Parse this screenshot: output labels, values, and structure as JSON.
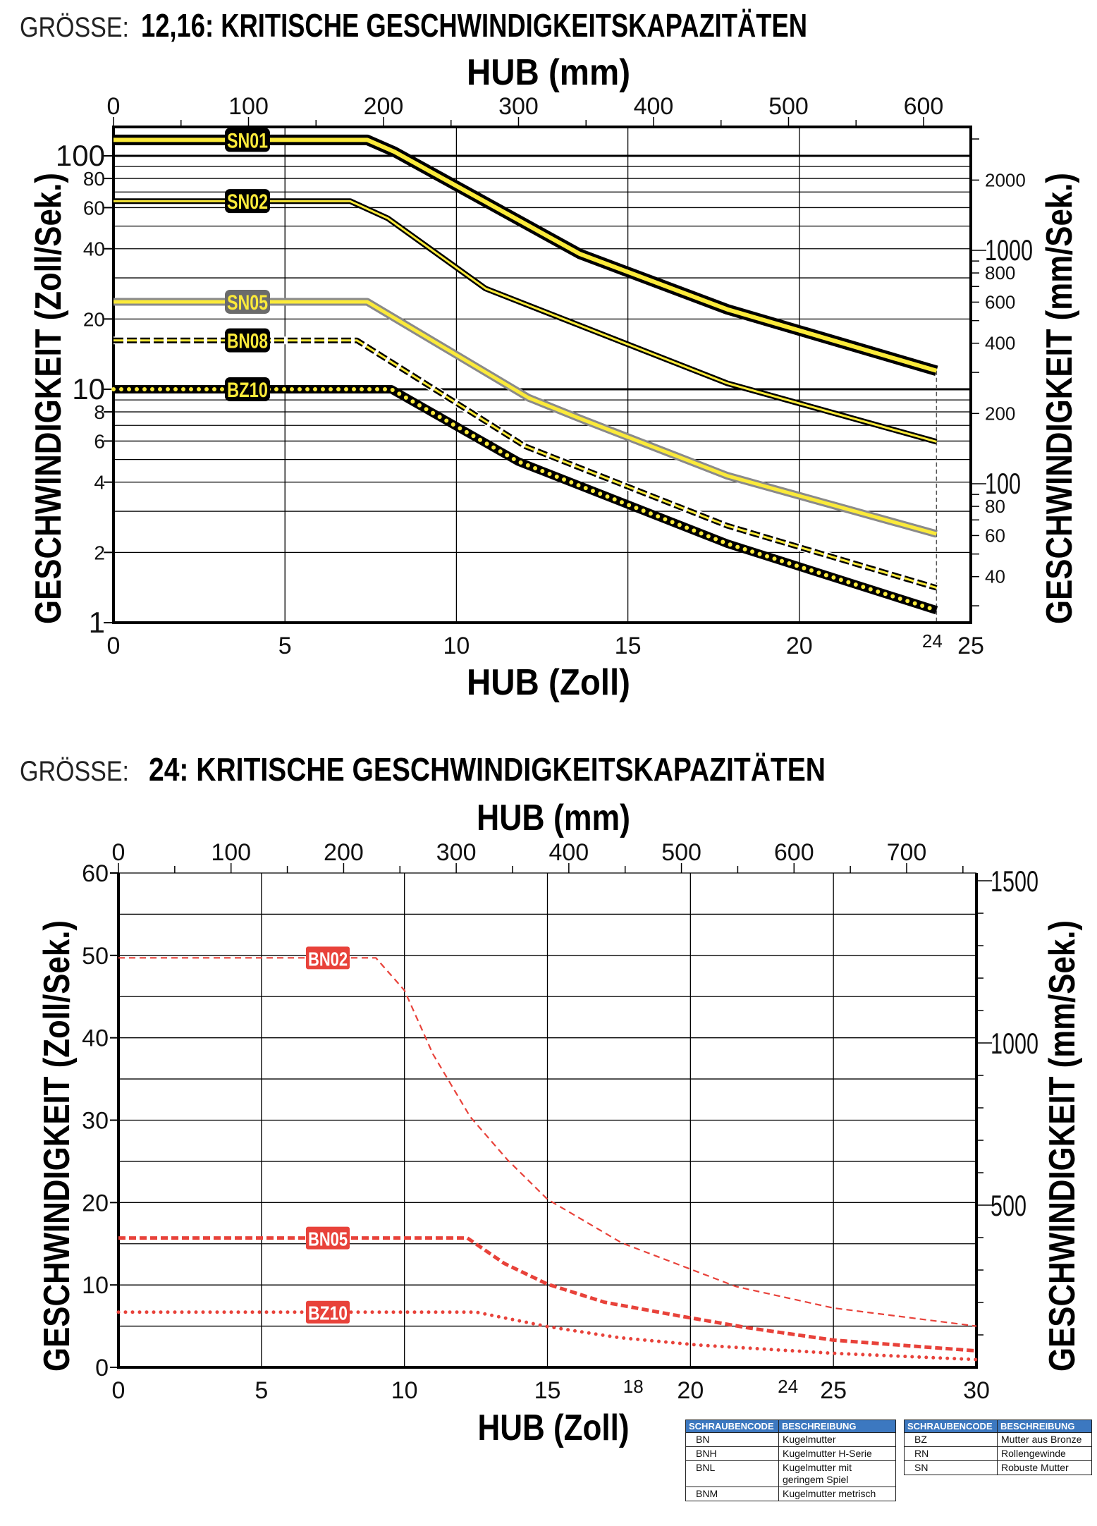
{
  "colors": {
    "yellow": "#fbea3a",
    "black": "#000000",
    "gray": "#8a8a8a",
    "red": "#e8423a",
    "table_header": "#3c78c0"
  },
  "chart_data": [
    {
      "type": "line",
      "title_prefix": "GRÖSSE:",
      "title": "12,16: KRITISCHE GESCHWINDIGKEITSKAPAZITÄTEN",
      "xlabel": "HUB (Zoll)",
      "x2label": "HUB (mm)",
      "ylabel": "GESCHWINDIGKEIT (Zoll/Sek.)",
      "y2label": "GESCHWINDIGKEIT (mm/Sek.)",
      "xlim": [
        0,
        25
      ],
      "ylim": [
        1,
        133
      ],
      "yscale": "log",
      "grid": true,
      "x_ticks": [
        "0",
        "5",
        "10",
        "15",
        "20",
        "25"
      ],
      "x_marker": "24",
      "x2_ticks": [
        "0",
        "100",
        "200",
        "300",
        "400",
        "500",
        "600"
      ],
      "y_ticks": [
        "1",
        "2",
        "4",
        "6",
        "8",
        "10",
        "20",
        "40",
        "60",
        "80",
        "100"
      ],
      "y2_ticks": [
        "40",
        "60",
        "80",
        "100",
        "200",
        "400",
        "600",
        "800",
        "1000",
        "2000"
      ],
      "series": [
        {
          "name": "SN01",
          "style": "sn01",
          "points": [
            [
              0,
              117
            ],
            [
              7.4,
              117
            ],
            [
              8.2,
              104
            ],
            [
              13.6,
              38
            ],
            [
              17.9,
              22
            ],
            [
              24,
              12
            ]
          ]
        },
        {
          "name": "SN02",
          "style": "sn02",
          "points": [
            [
              0,
              64
            ],
            [
              6.9,
              64
            ],
            [
              8.0,
              54
            ],
            [
              10.85,
              27
            ],
            [
              17.9,
              10.6
            ],
            [
              24,
              5.96
            ]
          ]
        },
        {
          "name": "SN05",
          "style": "sn05",
          "points": [
            [
              0,
              23.7
            ],
            [
              7.4,
              23.7
            ],
            [
              12.1,
              9.2
            ],
            [
              13.5,
              7.6
            ],
            [
              17.9,
              4.26
            ],
            [
              24,
              2.4
            ]
          ]
        },
        {
          "name": "BN08",
          "style": "bn08",
          "points": [
            [
              0,
              16.2
            ],
            [
              7.1,
              16.2
            ],
            [
              12.0,
              5.7
            ],
            [
              17.9,
              2.6
            ],
            [
              24,
              1.41
            ]
          ]
        },
        {
          "name": "BZ10",
          "style": "bz10",
          "points": [
            [
              0,
              10
            ],
            [
              8.1,
              10
            ],
            [
              11.8,
              4.9
            ],
            [
              17.9,
              2.18
            ],
            [
              24,
              1.13
            ]
          ]
        }
      ]
    },
    {
      "type": "line",
      "title_prefix": "GRÖSSE:",
      "title": "24: KRITISCHE GESCHWINDIGKEITSKAPAZITÄTEN",
      "xlabel": "HUB (Zoll)",
      "x2label": "HUB (mm)",
      "ylabel": "GESCHWINDIGKEIT (Zoll/Sek.)",
      "y2label": "GESCHWINDIGKEIT (mm/Sek.)",
      "xlim": [
        0,
        30
      ],
      "ylim": [
        0,
        60
      ],
      "yscale": "linear",
      "grid": true,
      "x_ticks": [
        "0",
        "5",
        "10",
        "15",
        "20",
        "25",
        "30"
      ],
      "x_markers": [
        "18",
        "24"
      ],
      "x2_ticks": [
        "0",
        "100",
        "200",
        "300",
        "400",
        "500",
        "600",
        "700"
      ],
      "y_ticks": [
        "0",
        "10",
        "20",
        "30",
        "40",
        "50",
        "60"
      ],
      "y2_ticks": [
        "500",
        "1000",
        "1500"
      ],
      "series": [
        {
          "name": "BN02",
          "style": "r-thin",
          "points": [
            [
              0,
              49.7
            ],
            [
              9.0,
              49.7
            ],
            [
              10,
              45.75
            ],
            [
              11,
              38
            ],
            [
              12.3,
              30.4
            ],
            [
              13.6,
              25.2
            ],
            [
              15,
              20.4
            ],
            [
              17.6,
              15.1
            ],
            [
              21.6,
              9.8
            ],
            [
              25,
              7.2
            ],
            [
              30,
              5.0
            ]
          ]
        },
        {
          "name": "BN05",
          "style": "r-thick",
          "points": [
            [
              0,
              15.7
            ],
            [
              12.2,
              15.7
            ],
            [
              13.5,
              12.6
            ],
            [
              15,
              10.1
            ],
            [
              17,
              7.9
            ],
            [
              19.6,
              6.25
            ],
            [
              22,
              4.8
            ],
            [
              25,
              3.3
            ],
            [
              30,
              2.0
            ]
          ]
        },
        {
          "name": "BZ10",
          "style": "r-dot",
          "points": [
            [
              0,
              6.7
            ],
            [
              12.5,
              6.7
            ],
            [
              15,
              4.95
            ],
            [
              17.5,
              3.6
            ],
            [
              20.3,
              2.7
            ],
            [
              25,
              1.7
            ],
            [
              30,
              0.94
            ]
          ]
        }
      ]
    }
  ],
  "legend_tables": [
    {
      "headers": [
        "SCHRAUBENCODE",
        "BESCHREIBUNG"
      ],
      "rows": [
        [
          "BN",
          "Kugelmutter"
        ],
        [
          "BNH",
          "Kugelmutter H-Serie"
        ],
        [
          "BNL",
          "Kugelmutter mit geringem Spiel"
        ],
        [
          "BNM",
          "Kugelmutter metrisch"
        ]
      ]
    },
    {
      "headers": [
        "SCHRAUBENCODE",
        "BESCHREIBUNG"
      ],
      "rows": [
        [
          "BZ",
          "Mutter aus Bronze"
        ],
        [
          "RN",
          "Rollengewinde"
        ],
        [
          "SN",
          "Robuste Mutter"
        ]
      ]
    }
  ]
}
